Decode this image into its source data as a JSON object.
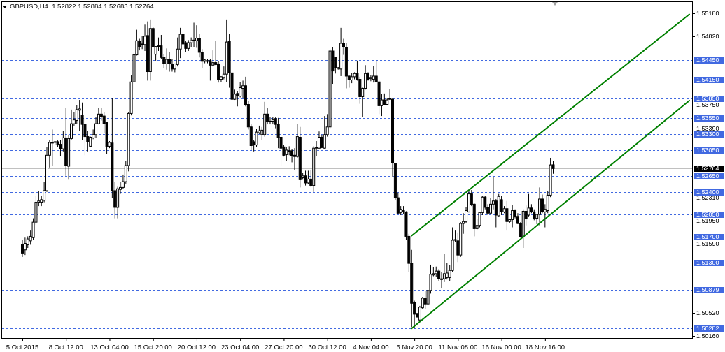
{
  "chart_data": {
    "type": "candlestick",
    "title": "GBPUSD,H4  1.52822 1.52884 1.52683 1.52764",
    "categories": [
      "5 Oct 2015",
      null,
      null,
      null,
      null,
      null,
      null,
      null,
      null,
      null,
      null,
      null,
      null,
      null,
      null,
      null,
      "8 Oct 12:00",
      null,
      null,
      null,
      null,
      null,
      null,
      null,
      null,
      null,
      null,
      null,
      null,
      null,
      null,
      null,
      "13 Oct 04:00",
      null,
      null,
      null,
      null,
      null,
      null,
      null,
      null,
      null,
      null,
      null,
      null,
      null,
      null,
      null,
      "15 Oct 20:00",
      null,
      null,
      null,
      null,
      null,
      null,
      null,
      null,
      null,
      null,
      null,
      null,
      null,
      null,
      null,
      "20 Oct 12:00",
      null,
      null,
      null,
      null,
      null,
      null,
      null,
      null,
      null,
      null,
      null,
      null,
      null,
      null,
      null,
      "23 Oct 04:00",
      null,
      null,
      null,
      null,
      null,
      null,
      null,
      null,
      null,
      null,
      null,
      null,
      null,
      null,
      null,
      "27 Oct 20:00",
      null,
      null,
      null,
      null,
      null,
      null,
      null,
      null,
      null,
      null,
      null,
      null,
      null,
      null,
      null,
      "30 Oct 12:00",
      null,
      null,
      null,
      null,
      null,
      null,
      null,
      null,
      null,
      null,
      null,
      null,
      null,
      null,
      null,
      "4 Nov 04:00",
      null,
      null,
      null,
      null,
      null,
      null,
      null,
      null,
      null,
      null,
      null,
      null,
      null,
      null,
      null,
      "6 Nov 20:00",
      null,
      null,
      null,
      null,
      null,
      null,
      null,
      null,
      null,
      null,
      null,
      null,
      null,
      null,
      null,
      "11 Nov 08:00",
      null,
      null,
      null,
      null,
      null,
      null,
      null,
      null,
      null,
      null,
      null,
      null,
      null,
      null,
      null,
      "16 Nov 00:00",
      null,
      null,
      null,
      null,
      null,
      null,
      null,
      null,
      null,
      null,
      null,
      null,
      null,
      null,
      null,
      "18 Nov 16:00",
      null,
      null,
      null,
      null,
      null,
      null,
      null,
      null,
      null,
      null,
      null,
      null,
      null,
      null,
      null,
      null,
      null,
      null,
      null,
      null,
      null,
      null,
      null,
      null,
      null,
      null,
      null,
      null,
      null,
      null,
      null,
      null,
      null,
      null,
      null,
      null,
      null,
      null,
      null,
      null,
      null,
      null,
      null,
      null,
      null,
      null,
      null,
      null,
      null,
      null,
      null,
      null,
      null
    ],
    "ohlc": [
      [
        1.5158,
        1.5166,
        1.5139,
        1.5145
      ],
      [
        1.515,
        1.5169,
        1.5142,
        1.516
      ],
      [
        1.5158,
        1.5171,
        1.5153,
        1.5167
      ],
      [
        1.5164,
        1.518,
        1.5158,
        1.5171
      ],
      [
        1.5169,
        1.5199,
        1.5166,
        1.5193
      ],
      [
        1.5193,
        1.5234,
        1.5189,
        1.5224
      ],
      [
        1.5224,
        1.5242,
        1.5218,
        1.5226
      ],
      [
        1.5224,
        1.5234,
        1.5218,
        1.5228
      ],
      [
        1.5227,
        1.5256,
        1.5224,
        1.5242
      ],
      [
        1.5242,
        1.531,
        1.524,
        1.5297
      ],
      [
        1.5297,
        1.5321,
        1.5278,
        1.5317
      ],
      [
        1.5316,
        1.5337,
        1.5281,
        1.5317
      ],
      [
        1.5318,
        1.5319,
        1.5313,
        1.5317
      ],
      [
        1.5318,
        1.532,
        1.531,
        1.5313
      ],
      [
        1.5314,
        1.5321,
        1.5296,
        1.5307
      ],
      [
        1.5307,
        1.5335,
        1.5303,
        1.5324
      ],
      [
        1.5324,
        1.5371,
        1.5265,
        1.5281
      ],
      [
        1.528,
        1.5329,
        1.5259,
        1.5323
      ],
      [
        1.5323,
        1.5368,
        1.5321,
        1.5346
      ],
      [
        1.5346,
        1.5364,
        1.5343,
        1.5352
      ],
      [
        1.5351,
        1.5375,
        1.5346,
        1.5368
      ],
      [
        1.5367,
        1.5383,
        1.5335,
        1.5369
      ],
      [
        1.5359,
        1.5379,
        1.5321,
        1.5345
      ],
      [
        1.5345,
        1.5354,
        1.5297,
        1.5326
      ],
      [
        1.5326,
        1.5335,
        1.5303,
        1.5318
      ],
      [
        1.5311,
        1.5326,
        1.531,
        1.5325
      ],
      [
        1.5324,
        1.5337,
        1.5322,
        1.5329
      ],
      [
        1.5329,
        1.5357,
        1.5324,
        1.5346
      ],
      [
        1.5346,
        1.5371,
        1.5345,
        1.5361
      ],
      [
        1.5361,
        1.5371,
        1.5351,
        1.5357
      ],
      [
        1.5358,
        1.5364,
        1.5332,
        1.5346
      ],
      [
        1.5348,
        1.5348,
        1.5299,
        1.5311
      ],
      [
        1.5311,
        1.5319,
        1.5308,
        1.5317
      ],
      [
        1.5316,
        1.5386,
        1.5231,
        1.5242
      ],
      [
        1.5242,
        1.5256,
        1.5199,
        1.5216
      ],
      [
        1.5216,
        1.5248,
        1.5199,
        1.5245
      ],
      [
        1.5244,
        1.5256,
        1.5237,
        1.5247
      ],
      [
        1.5247,
        1.5267,
        1.5245,
        1.5256
      ],
      [
        1.5256,
        1.5288,
        1.5253,
        1.5281
      ],
      [
        1.5281,
        1.5364,
        1.5272,
        1.5362
      ],
      [
        1.5362,
        1.5421,
        1.5359,
        1.5411
      ],
      [
        1.5411,
        1.5457,
        1.5399,
        1.5453
      ],
      [
        1.5453,
        1.5492,
        1.5452,
        1.5475
      ],
      [
        1.5474,
        1.5478,
        1.546,
        1.5466
      ],
      [
        1.5469,
        1.5482,
        1.5462,
        1.547
      ],
      [
        1.5469,
        1.55,
        1.5459,
        1.5482
      ],
      [
        1.5483,
        1.5505,
        1.5413,
        1.5427
      ],
      [
        1.5427,
        1.5508,
        1.5413,
        1.5494
      ],
      [
        1.5494,
        1.5497,
        1.5465,
        1.5466
      ],
      [
        1.5454,
        1.5466,
        1.5444,
        1.5466
      ],
      [
        1.5467,
        1.548,
        1.5459,
        1.5465
      ],
      [
        1.5467,
        1.5484,
        1.5446,
        1.5449
      ],
      [
        1.5449,
        1.5454,
        1.5432,
        1.5439
      ],
      [
        1.5439,
        1.5463,
        1.543,
        1.5446
      ],
      [
        1.5446,
        1.5457,
        1.5427,
        1.5439
      ],
      [
        1.5438,
        1.5446,
        1.5427,
        1.5431
      ],
      [
        1.5431,
        1.5439,
        1.5426,
        1.5439
      ],
      [
        1.5438,
        1.548,
        1.5435,
        1.5462
      ],
      [
        1.5462,
        1.5495,
        1.5448,
        1.5485
      ],
      [
        1.5485,
        1.5489,
        1.5467,
        1.547
      ],
      [
        1.5472,
        1.5475,
        1.5457,
        1.5463
      ],
      [
        1.5463,
        1.5476,
        1.5459,
        1.5472
      ],
      [
        1.5472,
        1.548,
        1.5465,
        1.5475
      ],
      [
        1.5475,
        1.5503,
        1.5465,
        1.5476
      ],
      [
        1.5475,
        1.5499,
        1.5464,
        1.5479
      ],
      [
        1.5479,
        1.5486,
        1.5449,
        1.5457
      ],
      [
        1.5457,
        1.5462,
        1.5433,
        1.5443
      ],
      [
        1.5443,
        1.5446,
        1.544,
        1.5445
      ],
      [
        1.5443,
        1.5446,
        1.544,
        1.5444
      ],
      [
        1.5444,
        1.5446,
        1.5413,
        1.5437
      ],
      [
        1.5437,
        1.546,
        1.5435,
        1.5441
      ],
      [
        1.5441,
        1.5475,
        1.5437,
        1.5438
      ],
      [
        1.5439,
        1.5443,
        1.541,
        1.5415
      ],
      [
        1.5415,
        1.542,
        1.5411,
        1.5419
      ],
      [
        1.5418,
        1.5435,
        1.5415,
        1.5423
      ],
      [
        1.5423,
        1.5508,
        1.5411,
        1.5473
      ],
      [
        1.5474,
        1.5486,
        1.5402,
        1.5425
      ],
      [
        1.5425,
        1.5429,
        1.5368,
        1.5384
      ],
      [
        1.5384,
        1.5399,
        1.5383,
        1.5392
      ],
      [
        1.5393,
        1.5397,
        1.5373,
        1.5389
      ],
      [
        1.5389,
        1.5411,
        1.5387,
        1.5402
      ],
      [
        1.5401,
        1.5413,
        1.5386,
        1.5405
      ],
      [
        1.5405,
        1.5419,
        1.5373,
        1.5376
      ],
      [
        1.5376,
        1.5381,
        1.5337,
        1.5341
      ],
      [
        1.5341,
        1.5345,
        1.5305,
        1.5312
      ],
      [
        1.5318,
        1.5321,
        1.5303,
        1.5313
      ],
      [
        1.5313,
        1.5338,
        1.531,
        1.5333
      ],
      [
        1.5332,
        1.5343,
        1.533,
        1.5335
      ],
      [
        1.5329,
        1.5341,
        1.5321,
        1.5336
      ],
      [
        1.5329,
        1.538,
        1.5326,
        1.5361
      ],
      [
        1.5361,
        1.537,
        1.5345,
        1.5349
      ],
      [
        1.535,
        1.5356,
        1.5345,
        1.5349
      ],
      [
        1.535,
        1.5357,
        1.5345,
        1.5352
      ],
      [
        1.5354,
        1.5357,
        1.5339,
        1.5345
      ],
      [
        1.5345,
        1.5355,
        1.5308,
        1.5324
      ],
      [
        1.5325,
        1.5332,
        1.528,
        1.5308
      ],
      [
        1.531,
        1.5313,
        1.5295,
        1.5297
      ],
      [
        1.5298,
        1.531,
        1.5288,
        1.5305
      ],
      [
        1.5304,
        1.5311,
        1.5297,
        1.5303
      ],
      [
        1.5304,
        1.5306,
        1.5286,
        1.5296
      ],
      [
        1.5297,
        1.5308,
        1.5274,
        1.5295
      ],
      [
        1.5295,
        1.5346,
        1.5293,
        1.5326
      ],
      [
        1.5325,
        1.5341,
        1.5247,
        1.5259
      ],
      [
        1.5262,
        1.527,
        1.5259,
        1.5265
      ],
      [
        1.5265,
        1.5273,
        1.525,
        1.5254
      ],
      [
        1.5254,
        1.5273,
        1.5252,
        1.526
      ],
      [
        1.526,
        1.5274,
        1.5248,
        1.525
      ],
      [
        1.525,
        1.5311,
        1.524,
        1.5308
      ],
      [
        1.5308,
        1.5319,
        1.5296,
        1.5309
      ],
      [
        1.5308,
        1.5334,
        1.5307,
        1.5325
      ],
      [
        1.5325,
        1.5329,
        1.5308,
        1.5309
      ],
      [
        1.5308,
        1.5358,
        1.5306,
        1.5329
      ],
      [
        1.5329,
        1.5361,
        1.5326,
        1.5341
      ],
      [
        1.5341,
        1.5462,
        1.5338,
        1.5459
      ],
      [
        1.5459,
        1.5465,
        1.5408,
        1.5428
      ],
      [
        1.5449,
        1.5449,
        1.5424,
        1.5433
      ],
      [
        1.5433,
        1.5434,
        1.543,
        1.5432
      ],
      [
        1.5431,
        1.5495,
        1.542,
        1.5471
      ],
      [
        1.5471,
        1.5478,
        1.5453,
        1.5465
      ],
      [
        1.5465,
        1.5472,
        1.5401,
        1.542
      ],
      [
        1.542,
        1.5421,
        1.5402,
        1.5414
      ],
      [
        1.5414,
        1.5425,
        1.5409,
        1.5419
      ],
      [
        1.5419,
        1.5426,
        1.5415,
        1.5424
      ],
      [
        1.5424,
        1.5444,
        1.5413,
        1.5415
      ],
      [
        1.5415,
        1.5419,
        1.5377,
        1.5388
      ],
      [
        1.5388,
        1.5402,
        1.5357,
        1.5401
      ],
      [
        1.5401,
        1.5437,
        1.5399,
        1.5424
      ],
      [
        1.5424,
        1.5426,
        1.5413,
        1.5415
      ],
      [
        1.5416,
        1.5421,
        1.5412,
        1.5418
      ],
      [
        1.5415,
        1.5436,
        1.541,
        1.542
      ],
      [
        1.542,
        1.5444,
        1.541,
        1.5411
      ],
      [
        1.5411,
        1.5413,
        1.5361,
        1.5374
      ],
      [
        1.5374,
        1.5392,
        1.5358,
        1.5383
      ],
      [
        1.5383,
        1.5393,
        1.5375,
        1.5376
      ],
      [
        1.5376,
        1.5386,
        1.5375,
        1.5383
      ],
      [
        1.5384,
        1.54,
        1.5383,
        1.5385
      ],
      [
        1.5384,
        1.5386,
        1.5263,
        1.5285
      ],
      [
        1.5284,
        1.5285,
        1.5228,
        1.5231
      ],
      [
        1.5231,
        1.5239,
        1.5205,
        1.5207
      ],
      [
        1.5208,
        1.5218,
        1.5204,
        1.5213
      ],
      [
        1.5211,
        1.5218,
        1.5206,
        1.5209
      ],
      [
        1.5209,
        1.521,
        1.5166,
        1.5171
      ],
      [
        1.5171,
        1.5175,
        1.5115,
        1.5129
      ],
      [
        1.5129,
        1.515,
        1.503,
        1.5067
      ],
      [
        1.5068,
        1.5071,
        1.5028,
        1.505
      ],
      [
        1.5051,
        1.5052,
        1.5044,
        1.5046
      ],
      [
        1.5041,
        1.5063,
        1.5039,
        1.5061
      ],
      [
        1.506,
        1.5077,
        1.5058,
        1.5075
      ],
      [
        1.5075,
        1.5086,
        1.5058,
        1.5066
      ],
      [
        1.5066,
        1.5088,
        1.5064,
        1.5087
      ],
      [
        1.5087,
        1.5127,
        1.5082,
        1.5112
      ],
      [
        1.5111,
        1.5123,
        1.5109,
        1.5113
      ],
      [
        1.5113,
        1.5124,
        1.5108,
        1.5117
      ],
      [
        1.5117,
        1.512,
        1.5101,
        1.5105
      ],
      [
        1.5105,
        1.5115,
        1.509,
        1.5104
      ],
      [
        1.5105,
        1.5144,
        1.51,
        1.5113
      ],
      [
        1.5107,
        1.513,
        1.5104,
        1.5114
      ],
      [
        1.5107,
        1.5126,
        1.5101,
        1.5118
      ],
      [
        1.5118,
        1.5185,
        1.5115,
        1.5165
      ],
      [
        1.5165,
        1.518,
        1.5162,
        1.5166
      ],
      [
        1.5164,
        1.5177,
        1.5131,
        1.5142
      ],
      [
        1.5142,
        1.5193,
        1.5139,
        1.5191
      ],
      [
        1.5191,
        1.5207,
        1.5175,
        1.5194
      ],
      [
        1.5194,
        1.5216,
        1.5191,
        1.5211
      ],
      [
        1.5209,
        1.5242,
        1.5208,
        1.5237
      ],
      [
        1.5237,
        1.5243,
        1.5218,
        1.522
      ],
      [
        1.5221,
        1.5223,
        1.5171,
        1.5183
      ],
      [
        1.5183,
        1.5198,
        1.518,
        1.5188
      ],
      [
        1.5188,
        1.5209,
        1.5185,
        1.5208
      ],
      [
        1.5208,
        1.5234,
        1.5204,
        1.5232
      ],
      [
        1.5232,
        1.5234,
        1.5213,
        1.5216
      ],
      [
        1.5216,
        1.5221,
        1.5204,
        1.5207
      ],
      [
        1.5207,
        1.5231,
        1.5205,
        1.5221
      ],
      [
        1.5221,
        1.5263,
        1.5213,
        1.5226
      ],
      [
        1.5226,
        1.5229,
        1.5185,
        1.5204
      ],
      [
        1.5203,
        1.5237,
        1.5202,
        1.5233
      ],
      [
        1.5228,
        1.5234,
        1.5204,
        1.5209
      ],
      [
        1.5209,
        1.5218,
        1.5207,
        1.5214
      ],
      [
        1.5214,
        1.5226,
        1.518,
        1.5194
      ],
      [
        1.5194,
        1.5198,
        1.5191,
        1.5197
      ],
      [
        1.5197,
        1.522,
        1.5185,
        1.5211
      ],
      [
        1.5211,
        1.5213,
        1.5199,
        1.5202
      ],
      [
        1.5202,
        1.5207,
        1.519,
        1.5191
      ],
      [
        1.5191,
        1.5193,
        1.5169,
        1.517
      ],
      [
        1.517,
        1.5213,
        1.5153,
        1.521
      ],
      [
        1.521,
        1.5219,
        1.5188,
        1.5198
      ],
      [
        1.5204,
        1.5237,
        1.5202,
        1.5215
      ],
      [
        1.5215,
        1.5221,
        1.5207,
        1.5209
      ],
      [
        1.5209,
        1.5213,
        1.5196,
        1.5199
      ],
      [
        1.5199,
        1.5205,
        1.519,
        1.5205
      ],
      [
        1.5205,
        1.5247,
        1.5188,
        1.5229
      ],
      [
        1.5229,
        1.5236,
        1.5207,
        1.5209
      ],
      [
        1.5209,
        1.5221,
        1.5185,
        1.5213
      ],
      [
        1.5211,
        1.5242,
        1.5207,
        1.5235
      ],
      [
        1.5235,
        1.5293,
        1.5232,
        1.5282
      ],
      [
        1.52822,
        1.52884,
        1.52683,
        1.52764
      ],
      null,
      null,
      null,
      null,
      null,
      null,
      null,
      null,
      null,
      null,
      null,
      null,
      null,
      null,
      null,
      null,
      null,
      null,
      null,
      null,
      null,
      null,
      null,
      null,
      null,
      null,
      null,
      null,
      null,
      null,
      null,
      null,
      null,
      null,
      null,
      null,
      null,
      null,
      null,
      null,
      null,
      null,
      null,
      null,
      null,
      null,
      null,
      null,
      null,
      null
    ],
    "series": [
      {
        "type": "line",
        "color": "#008000",
        "values": [
          null,
          null,
          null,
          null,
          null,
          null,
          null,
          null,
          null,
          null,
          null,
          null,
          null,
          null,
          null,
          null,
          null,
          null,
          null,
          null,
          null,
          null,
          null,
          null,
          null,
          null,
          null,
          null,
          null,
          null,
          null,
          null,
          null,
          null,
          null,
          null,
          null,
          null,
          null,
          null,
          null,
          null,
          null,
          null,
          null,
          null,
          null,
          null,
          null,
          null,
          null,
          null,
          null,
          null,
          null,
          null,
          null,
          null,
          null,
          null,
          null,
          null,
          null,
          null,
          null,
          null,
          null,
          null,
          null,
          null,
          null,
          null,
          null,
          null,
          null,
          null,
          null,
          null,
          null,
          null,
          null,
          null,
          null,
          null,
          null,
          null,
          null,
          null,
          null,
          null,
          null,
          null,
          null,
          null,
          null,
          null,
          null,
          null,
          null,
          null,
          null,
          null,
          null,
          null,
          null,
          null,
          null,
          null,
          null,
          null,
          null,
          null,
          null,
          null,
          null,
          null,
          null,
          null,
          null,
          null,
          null,
          null,
          null,
          null,
          null,
          null,
          null,
          null,
          null,
          null,
          null,
          null,
          null,
          null,
          null,
          null,
          null,
          null,
          null,
          null,
          null,
          null,
          null,
          1.5172,
          null,
          null,
          null,
          null,
          null,
          null,
          null,
          null,
          null,
          null,
          null,
          null,
          null,
          null,
          null,
          null,
          null,
          null,
          null,
          null,
          null,
          null,
          null,
          null,
          null,
          null,
          null,
          null,
          null,
          null,
          null,
          null,
          null,
          null,
          null,
          null,
          null,
          null,
          null,
          null,
          null,
          null,
          null,
          null,
          null,
          null,
          null,
          null,
          null,
          null,
          null,
          null,
          null,
          null,
          null,
          null,
          null,
          null,
          null,
          null,
          null,
          null,
          null,
          null,
          null,
          null,
          null,
          null,
          null,
          null,
          null,
          null,
          null,
          null,
          null,
          null,
          null,
          null,
          null,
          null,
          null,
          null,
          null,
          null,
          null,
          null,
          null,
          null,
          null,
          null,
          null,
          null,
          null,
          null,
          null,
          null,
          null,
          null,
          null,
          null,
          null,
          1.5516
        ]
      },
      {
        "type": "line",
        "color": "#008000",
        "values": [
          null,
          null,
          null,
          null,
          null,
          null,
          null,
          null,
          null,
          null,
          null,
          null,
          null,
          null,
          null,
          null,
          null,
          null,
          null,
          null,
          null,
          null,
          null,
          null,
          null,
          null,
          null,
          null,
          null,
          null,
          null,
          null,
          null,
          null,
          null,
          null,
          null,
          null,
          null,
          null,
          null,
          null,
          null,
          null,
          null,
          null,
          null,
          null,
          null,
          null,
          null,
          null,
          null,
          null,
          null,
          null,
          null,
          null,
          null,
          null,
          null,
          null,
          null,
          null,
          null,
          null,
          null,
          null,
          null,
          null,
          null,
          null,
          null,
          null,
          null,
          null,
          null,
          null,
          null,
          null,
          null,
          null,
          null,
          null,
          null,
          null,
          null,
          null,
          null,
          null,
          null,
          null,
          null,
          null,
          null,
          null,
          null,
          null,
          null,
          null,
          null,
          null,
          null,
          null,
          null,
          null,
          null,
          null,
          null,
          null,
          null,
          null,
          null,
          null,
          null,
          null,
          null,
          null,
          null,
          null,
          null,
          null,
          null,
          null,
          null,
          null,
          null,
          null,
          null,
          null,
          null,
          null,
          null,
          null,
          null,
          null,
          null,
          null,
          null,
          null,
          null,
          null,
          null,
          1.5028,
          null,
          null,
          null,
          null,
          null,
          null,
          null,
          null,
          null,
          null,
          null,
          null,
          null,
          null,
          null,
          null,
          null,
          null,
          null,
          null,
          null,
          null,
          null,
          null,
          null,
          null,
          null,
          null,
          null,
          null,
          null,
          null,
          null,
          null,
          null,
          null,
          null,
          null,
          null,
          null,
          null,
          null,
          null,
          null,
          null,
          null,
          null,
          null,
          null,
          null,
          null,
          null,
          null,
          null,
          null,
          null,
          null,
          null,
          null,
          null,
          null,
          null,
          null,
          null,
          null,
          null,
          null,
          null,
          null,
          null,
          null,
          null,
          null,
          null,
          null,
          null,
          null,
          null,
          null,
          null,
          null,
          null,
          null,
          null,
          null,
          null,
          null,
          null,
          null,
          null,
          null,
          null,
          null,
          null,
          null,
          null,
          null,
          null,
          null,
          null,
          null,
          1.5382
        ]
      }
    ],
    "ylim": [
      1.5013,
      1.5535
    ],
    "yticks": [
      {
        "value": 1.5518,
        "label": "1.55180"
      },
      {
        "value": 1.5482,
        "label": "1.54820"
      },
      {
        "value": 1.5375,
        "label": "1.53750"
      },
      {
        "value": 1.5339,
        "label": "1.53390"
      },
      {
        "value": 1.5231,
        "label": "1.52310"
      },
      {
        "value": 1.5195,
        "label": "1.51950"
      },
      {
        "value": 1.5159,
        "label": "1.51590"
      },
      {
        "value": 1.5052,
        "label": "1.50520"
      },
      {
        "value": 1.5016,
        "label": "1.50160"
      }
    ],
    "ref_lines": [
      {
        "axis": "y",
        "value": 1.5445,
        "label": "1.54450",
        "color": "#4169e1",
        "line_style": "dashed"
      },
      {
        "axis": "y",
        "value": 1.5415,
        "label": "1.54150",
        "color": "#4169e1",
        "line_style": "dashed"
      },
      {
        "axis": "y",
        "value": 1.5385,
        "label": "1.53850",
        "color": "#4169e1",
        "line_style": "dashed"
      },
      {
        "axis": "y",
        "value": 1.5355,
        "label": "1.53550",
        "color": "#4169e1",
        "line_style": "dashed"
      },
      {
        "axis": "y",
        "value": 1.533,
        "label": "1.53300",
        "color": "#4169e1",
        "line_style": "dashed"
      },
      {
        "axis": "y",
        "value": 1.5305,
        "label": "1.53050",
        "color": "#4169e1",
        "line_style": "dashed"
      },
      {
        "axis": "y",
        "value": 1.52764,
        "label": "1.52764",
        "color": "#c0c0c0",
        "line_style": "solid"
      },
      {
        "axis": "y",
        "value": 1.5265,
        "label": "1.52650",
        "color": "#4169e1",
        "line_style": "dashed"
      },
      {
        "axis": "y",
        "value": 1.524,
        "label": "1.52400",
        "color": "#4169e1",
        "line_style": "dashed"
      },
      {
        "axis": "y",
        "value": 1.5205,
        "label": "1.52050",
        "color": "#4169e1",
        "line_style": "dashed"
      },
      {
        "axis": "y",
        "value": 1.517,
        "label": "1.51700",
        "color": "#4169e1",
        "line_style": "dashed"
      },
      {
        "axis": "y",
        "value": 1.513,
        "label": "1.51300",
        "color": "#4169e1",
        "line_style": "dashed"
      },
      {
        "axis": "y",
        "value": 1.50879,
        "label": "1.50879",
        "color": "#4169e1",
        "line_style": "dashed"
      },
      {
        "axis": "y",
        "value": 1.50282,
        "label": "1.50282",
        "color": "#4169e1",
        "line_style": "dashed"
      }
    ]
  }
}
